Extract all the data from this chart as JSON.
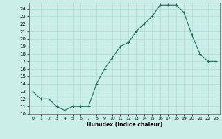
{
  "x": [
    0,
    1,
    2,
    3,
    4,
    5,
    6,
    7,
    8,
    9,
    10,
    11,
    12,
    13,
    14,
    15,
    16,
    17,
    18,
    19,
    20,
    21,
    22,
    23
  ],
  "y": [
    13,
    12,
    12,
    11,
    10.5,
    11,
    11,
    11,
    14,
    16,
    17.5,
    19,
    19.5,
    21,
    22,
    23,
    24.5,
    24.5,
    24.5,
    23.5,
    20.5,
    18,
    17,
    17
  ],
  "title": "",
  "xlabel": "Humidex (Indice chaleur)",
  "ylabel": "",
  "ylim": [
    10,
    24.8
  ],
  "xlim": [
    -0.5,
    23.5
  ],
  "yticks": [
    10,
    11,
    12,
    13,
    14,
    15,
    16,
    17,
    18,
    19,
    20,
    21,
    22,
    23,
    24
  ],
  "xticks": [
    0,
    1,
    2,
    3,
    4,
    5,
    6,
    7,
    8,
    9,
    10,
    11,
    12,
    13,
    14,
    15,
    16,
    17,
    18,
    19,
    20,
    21,
    22,
    23
  ],
  "line_color": "#1a6b5a",
  "marker": "+",
  "bg_color": "#cceee8",
  "grid_color": "#aaddcc",
  "font_color": "#000000"
}
